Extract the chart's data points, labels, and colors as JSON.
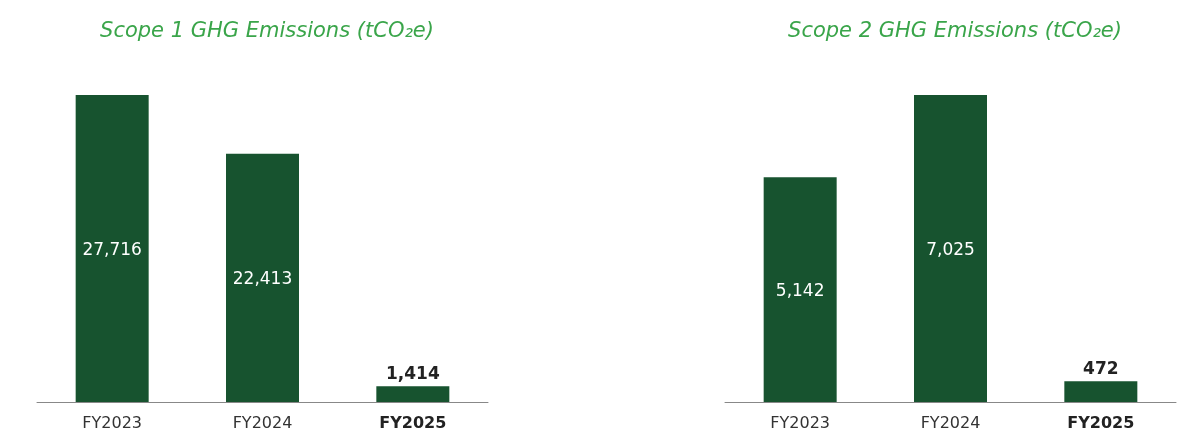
{
  "chart_data": [
    {
      "type": "bar",
      "title": "Scope 1 GHG Emissions (tCO₂e)",
      "categories": [
        "FY2023",
        "FY2024",
        "FY2025"
      ],
      "values": [
        27716,
        22413,
        1414
      ],
      "value_labels": [
        "27,716",
        "22,413",
        "1,414"
      ],
      "color": "#17532f"
    },
    {
      "type": "bar",
      "title": "Scope 2 GHG Emissions (tCO₂e)",
      "categories": [
        "FY2023",
        "FY2024",
        "FY2025"
      ],
      "values": [
        5142,
        7025,
        472
      ],
      "value_labels": [
        "5,142",
        "7,025",
        "472"
      ],
      "color": "#17532f"
    }
  ]
}
